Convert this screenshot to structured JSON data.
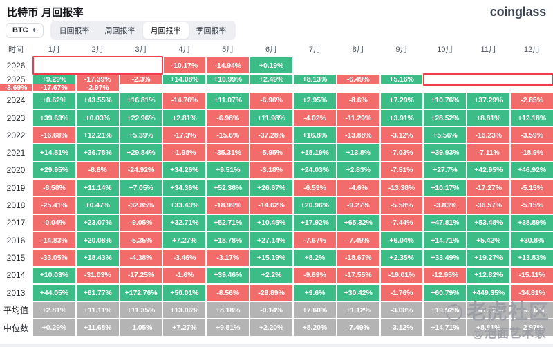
{
  "header": {
    "title": "比特币 月回报率",
    "logo": "coinglass"
  },
  "controls": {
    "symbol": "BTC",
    "tabs": [
      {
        "label": "日回报率",
        "active": false
      },
      {
        "label": "周回报率",
        "active": false
      },
      {
        "label": "月回报率",
        "active": true
      },
      {
        "label": "季回报率",
        "active": false
      }
    ]
  },
  "table": {
    "time_header": "时间",
    "months": [
      "1月",
      "2月",
      "3月",
      "4月",
      "5月",
      "6月",
      "7月",
      "8月",
      "9月",
      "10月",
      "11月",
      "12月"
    ],
    "rows": [
      {
        "label": "2026",
        "type": "year",
        "highlight": [
          1,
          3
        ],
        "values": [
          "-10.17%",
          "-14.94%",
          "+0.19%"
        ]
      },
      {
        "label": "2025",
        "type": "year",
        "highlight": [
          10,
          12
        ],
        "values": [
          "+9.29%",
          "-17.39%",
          "-2.3%",
          "+14.08%",
          "+10.99%",
          "+2.49%",
          "+8.13%",
          "-6.49%",
          "+5.16%",
          "-3.69%",
          "-17.67%",
          "-2.97%"
        ]
      },
      {
        "label": "2024",
        "type": "year",
        "highlight": null,
        "values": [
          "+0.62%",
          "+43.55%",
          "+16.81%",
          "-14.76%",
          "+11.07%",
          "-6.96%",
          "+2.95%",
          "-8.6%",
          "+7.29%",
          "+10.76%",
          "+37.29%",
          "-2.85%"
        ]
      },
      {
        "label": "2023",
        "type": "year",
        "highlight": null,
        "values": [
          "+39.63%",
          "+0.03%",
          "+22.96%",
          "+2.81%",
          "-6.98%",
          "+11.98%",
          "-4.02%",
          "-11.29%",
          "+3.91%",
          "+28.52%",
          "+8.81%",
          "+12.18%"
        ]
      },
      {
        "label": "2022",
        "type": "year",
        "highlight": null,
        "values": [
          "-16.68%",
          "+12.21%",
          "+5.39%",
          "-17.3%",
          "-15.6%",
          "-37.28%",
          "+16.8%",
          "-13.88%",
          "-3.12%",
          "+5.56%",
          "-16.23%",
          "-3.59%"
        ]
      },
      {
        "label": "2021",
        "type": "year",
        "highlight": null,
        "values": [
          "+14.51%",
          "+36.78%",
          "+29.84%",
          "-1.98%",
          "-35.31%",
          "-5.95%",
          "+18.19%",
          "+13.8%",
          "-7.03%",
          "+39.93%",
          "-7.11%",
          "-18.9%"
        ]
      },
      {
        "label": "2020",
        "type": "year",
        "highlight": null,
        "values": [
          "+29.95%",
          "-8.6%",
          "-24.92%",
          "+34.26%",
          "+9.51%",
          "-3.18%",
          "+24.03%",
          "+2.83%",
          "-7.51%",
          "+27.7%",
          "+42.95%",
          "+46.92%"
        ]
      },
      {
        "label": "2019",
        "type": "year",
        "highlight": null,
        "values": [
          "-8.58%",
          "+11.14%",
          "+7.05%",
          "+34.36%",
          "+52.38%",
          "+26.67%",
          "-6.59%",
          "-4.6%",
          "-13.38%",
          "+10.17%",
          "-17.27%",
          "-5.15%"
        ]
      },
      {
        "label": "2018",
        "type": "year",
        "highlight": null,
        "values": [
          "-25.41%",
          "+0.47%",
          "-32.85%",
          "+33.43%",
          "-18.99%",
          "-14.62%",
          "+20.96%",
          "-9.27%",
          "-5.58%",
          "-3.83%",
          "-36.57%",
          "-5.15%"
        ]
      },
      {
        "label": "2017",
        "type": "year",
        "highlight": null,
        "values": [
          "-0.04%",
          "+23.07%",
          "-9.05%",
          "+32.71%",
          "+52.71%",
          "+10.45%",
          "+17.92%",
          "+65.32%",
          "-7.44%",
          "+47.81%",
          "+53.48%",
          "+38.89%"
        ]
      },
      {
        "label": "2016",
        "type": "year",
        "highlight": null,
        "values": [
          "-14.83%",
          "+20.08%",
          "-5.35%",
          "+7.27%",
          "+18.78%",
          "+27.14%",
          "-7.67%",
          "-7.49%",
          "+6.04%",
          "+14.71%",
          "+5.42%",
          "+30.8%"
        ]
      },
      {
        "label": "2015",
        "type": "year",
        "highlight": null,
        "values": [
          "-33.05%",
          "+18.43%",
          "-4.38%",
          "-3.46%",
          "-3.17%",
          "+15.19%",
          "+8.2%",
          "-18.67%",
          "+2.35%",
          "+33.49%",
          "+19.27%",
          "+13.83%"
        ]
      },
      {
        "label": "2014",
        "type": "year",
        "highlight": null,
        "values": [
          "+10.03%",
          "-31.03%",
          "-17.25%",
          "-1.6%",
          "+39.46%",
          "+2.2%",
          "-9.69%",
          "-17.55%",
          "-19.01%",
          "-12.95%",
          "+12.82%",
          "-15.11%"
        ]
      },
      {
        "label": "2013",
        "type": "year",
        "highlight": null,
        "values": [
          "+44.05%",
          "+61.77%",
          "+172.76%",
          "+50.01%",
          "-8.56%",
          "-29.89%",
          "+9.6%",
          "+30.42%",
          "-1.76%",
          "+60.79%",
          "+449.35%",
          "-34.81%"
        ]
      },
      {
        "label": "平均值",
        "type": "summary",
        "highlight": null,
        "values": [
          "+2.81%",
          "+11.11%",
          "+11.35%",
          "+13.06%",
          "+8.18%",
          "-0.14%",
          "+7.60%",
          "+1.12%",
          "-3.08%",
          "+19.92%",
          "+41.12%",
          "+4.16%"
        ]
      },
      {
        "label": "中位数",
        "type": "summary",
        "highlight": null,
        "values": [
          "+0.29%",
          "+11.68%",
          "-1.05%",
          "+7.27%",
          "+9.51%",
          "+2.20%",
          "+8.20%",
          "-7.49%",
          "-3.12%",
          "+14.71%",
          "+8.81%",
          "-2.97%"
        ]
      }
    ]
  },
  "watermark": {
    "line1": "老虎社区",
    "line2": "@泡面艺术家"
  },
  "colors": {
    "positive": "#3cbc87",
    "negative": "#f26c6c",
    "summary": "#b4b4b4",
    "highlight_border": "#f03e4d"
  }
}
